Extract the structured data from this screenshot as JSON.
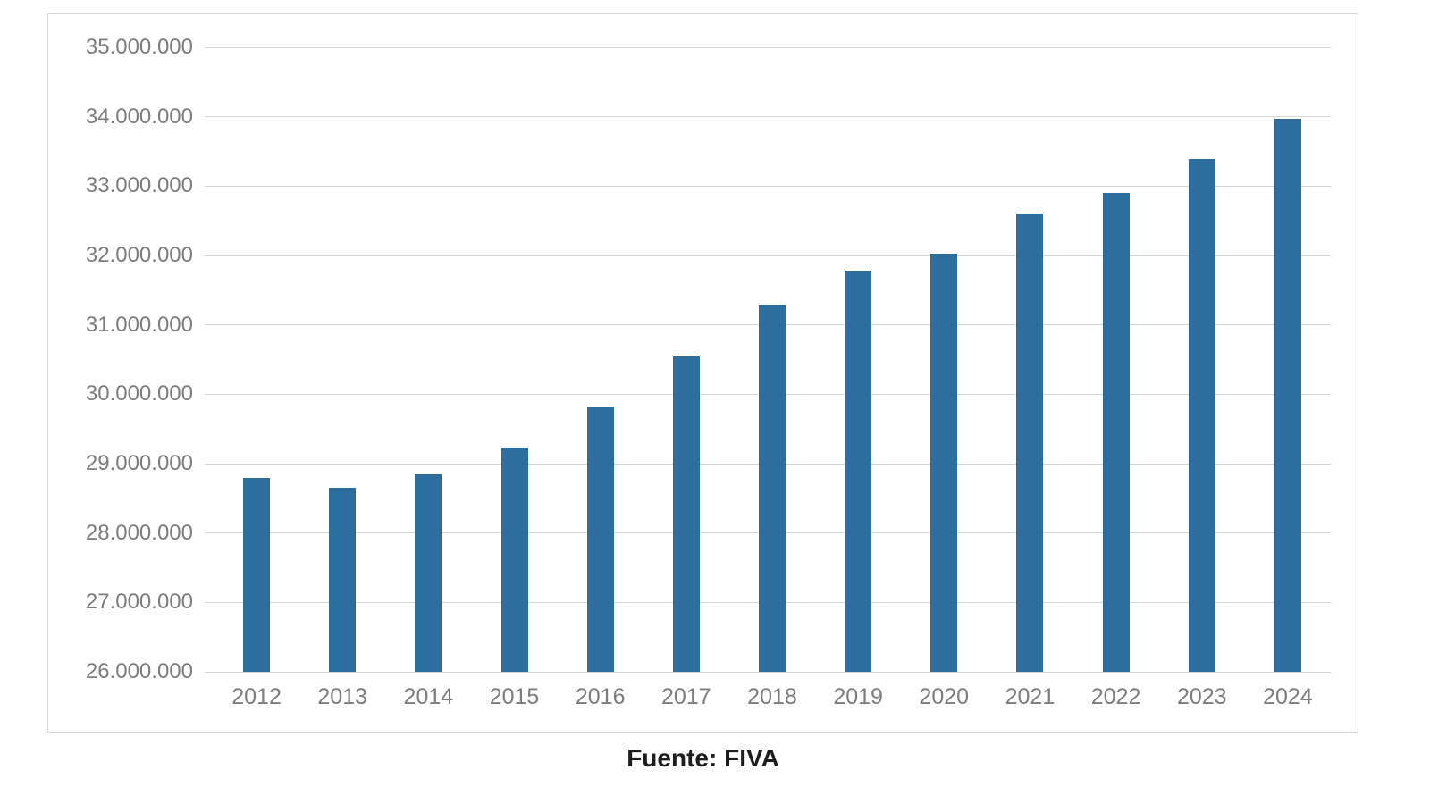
{
  "chart_data": {
    "type": "bar",
    "title": "",
    "xlabel": "",
    "ylabel": "",
    "categories": [
      "2012",
      "2013",
      "2014",
      "2015",
      "2016",
      "2017",
      "2018",
      "2019",
      "2020",
      "2021",
      "2022",
      "2023",
      "2024"
    ],
    "values": [
      28800000,
      28650000,
      28850000,
      29230000,
      29810000,
      30550000,
      31290000,
      31780000,
      32030000,
      32600000,
      32900000,
      33390000,
      33970000
    ],
    "ylim": [
      26000000,
      35000000
    ],
    "ytick_values": [
      35000000,
      34000000,
      33000000,
      32000000,
      31000000,
      30000000,
      29000000,
      28000000,
      27000000,
      26000000
    ],
    "ytick_labels": [
      "35.000.000",
      "34.000.000",
      "33.000.000",
      "32.000.000",
      "31.000.000",
      "30.000.000",
      "29.000.000",
      "28.000.000",
      "27.000.000",
      "26.000.000"
    ],
    "grid": "horizontal",
    "legend": "none",
    "bar_color": "#2d6e9e",
    "gridline_color": "#d6d6d6",
    "tick_label_color": "#7d7d7d",
    "source_note": "Fuente: FIVA"
  },
  "footer": {
    "source_label": "Fuente: FIVA"
  }
}
